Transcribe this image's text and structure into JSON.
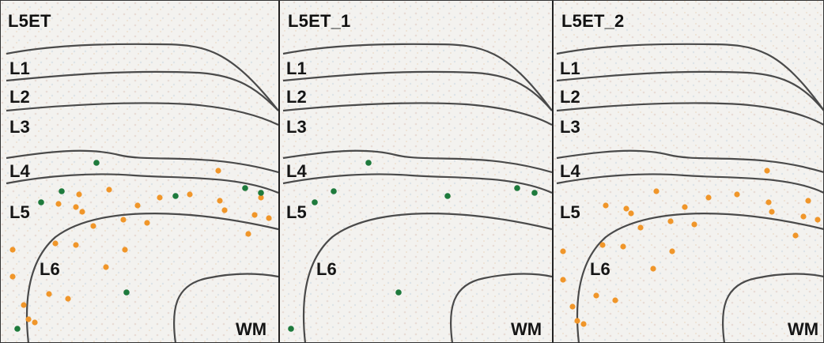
{
  "panels": [
    {
      "title": "L5ET",
      "layers": [
        "L1",
        "L2",
        "L3",
        "L4",
        "L5",
        "L6",
        "WM"
      ],
      "dot_colors": {
        "orange": "#f0962a",
        "green": "#1e7a3c"
      }
    },
    {
      "title": "L5ET_1",
      "layers": [
        "L1",
        "L2",
        "L3",
        "L4",
        "L5",
        "L6",
        "WM"
      ],
      "dot_colors": {
        "green": "#1e7a3c"
      }
    },
    {
      "title": "L5ET_2",
      "layers": [
        "L1",
        "L2",
        "L3",
        "L4",
        "L5",
        "L6",
        "WM"
      ],
      "dot_colors": {
        "orange": "#f0962a"
      }
    }
  ],
  "boundary_color": "#4a4a4a",
  "tissue_color": "#f4f3f1"
}
